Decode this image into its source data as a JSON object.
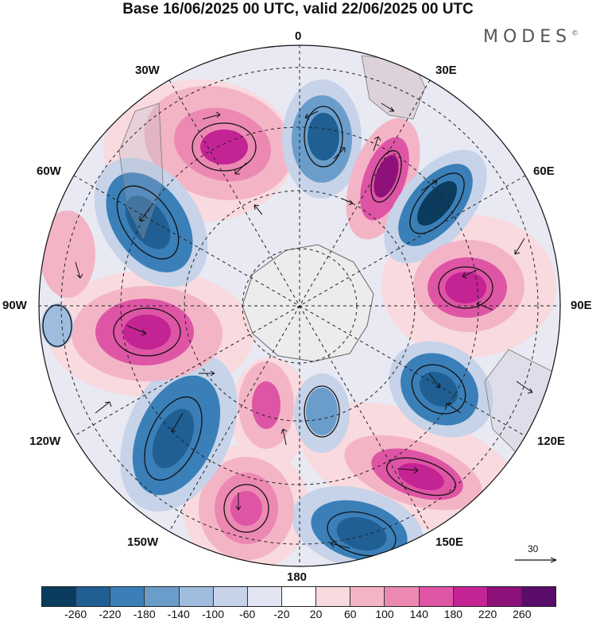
{
  "title": "Base 16/06/2025 00 UTC, valid 22/06/2025 00 UTC",
  "brand": "MODES",
  "brand_mark": "©",
  "longitudes": {
    "top": "0",
    "bottom": "180",
    "left": "90W",
    "right": "90E",
    "w30": "30W",
    "e30": "30E",
    "w60": "60W",
    "e60": "60E",
    "w120": "120W",
    "e120": "120E",
    "w150": "150W",
    "e150": "150E"
  },
  "reference_vector": "30",
  "colorbar": {
    "ticks": [
      "-260",
      "-220",
      "-180",
      "-140",
      "-100",
      "-60",
      "-20",
      "20",
      "60",
      "100",
      "140",
      "180",
      "220",
      "260"
    ],
    "colors": [
      "#0b3c5d",
      "#1f5f93",
      "#3a7fb8",
      "#6b9dcb",
      "#9fbbdd",
      "#c6d3e9",
      "#e3e6f2",
      "#ffffff",
      "#f9dade",
      "#f3b5c6",
      "#ec89b2",
      "#df55a5",
      "#c42394",
      "#8e1079",
      "#5a0c6b"
    ]
  }
}
